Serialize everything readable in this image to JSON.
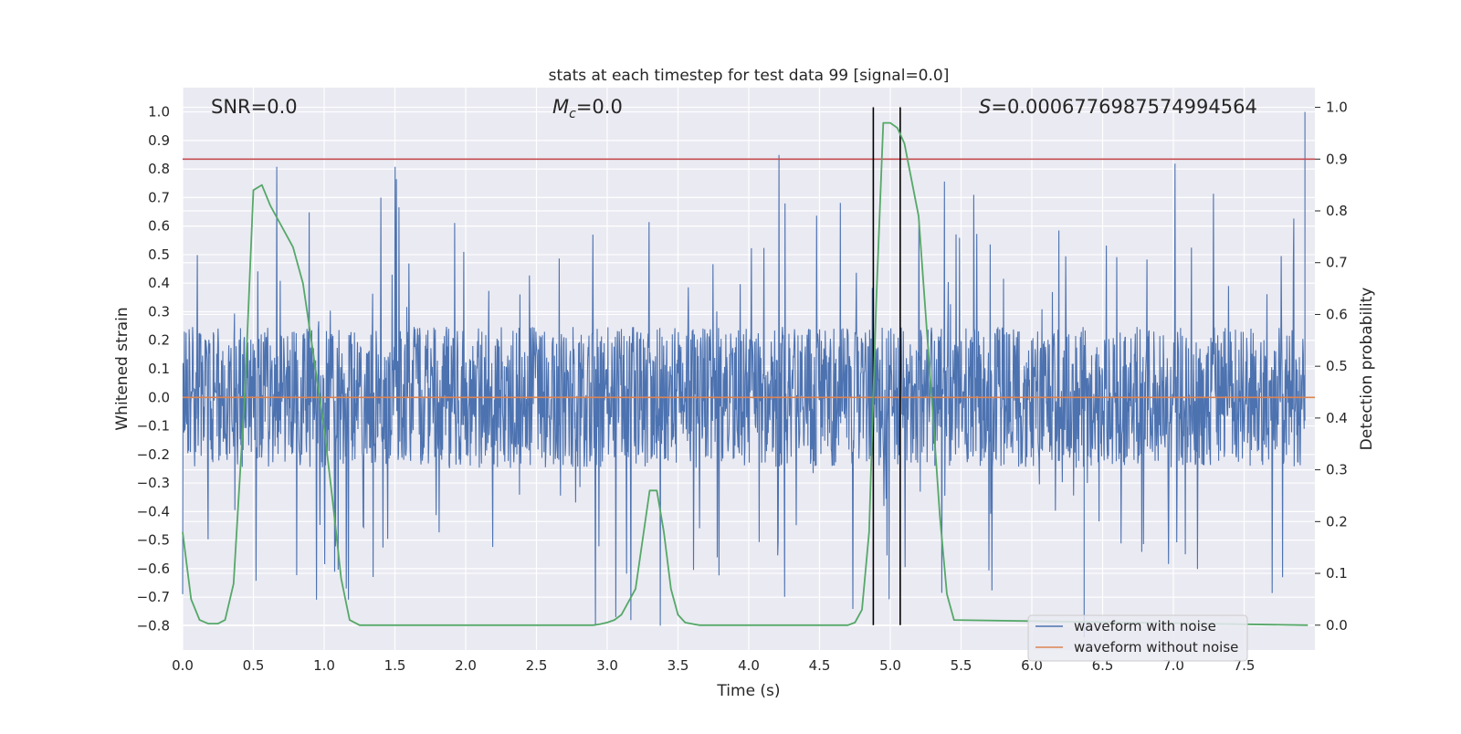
{
  "chart_data": {
    "type": "line",
    "title": "stats at each timestep for test data 99 [signal=0.0]",
    "xlabel": "Time (s)",
    "ylabel": "Whitened strain",
    "ylabel_right": "Detection probability",
    "xlim": [
      0.0,
      8.0
    ],
    "ylim": [
      -0.885,
      1.085
    ],
    "ylim_right": [
      -0.048,
      1.038
    ],
    "x_ticks": [
      0.0,
      0.5,
      1.0,
      1.5,
      2.0,
      2.5,
      3.0,
      3.5,
      4.0,
      4.5,
      5.0,
      5.5,
      6.0,
      6.5,
      7.0,
      7.5
    ],
    "x_tick_labels": [
      "0.0",
      "0.5",
      "1.0",
      "1.5",
      "2.0",
      "2.5",
      "3.0",
      "3.5",
      "4.0",
      "4.5",
      "5.0",
      "5.5",
      "6.0",
      "6.5",
      "7.0",
      "7.5"
    ],
    "y_ticks": [
      1.0,
      0.9,
      0.8,
      0.7,
      0.6,
      0.5,
      0.4,
      0.3,
      0.2,
      0.1,
      0.0,
      -0.1,
      -0.2,
      -0.3,
      -0.4,
      -0.5,
      -0.6,
      -0.7,
      -0.8
    ],
    "y_tick_labels": [
      "1.0",
      "0.9",
      "0.8",
      "0.7",
      "0.6",
      "0.5",
      "0.4",
      "0.3",
      "0.2",
      "0.1",
      "0.0",
      "−0.1",
      "−0.2",
      "−0.3",
      "−0.4",
      "−0.5",
      "−0.6",
      "−0.7",
      "−0.8"
    ],
    "y_right_ticks": [
      1.0,
      0.9,
      0.8,
      0.7,
      0.6,
      0.5,
      0.4,
      0.3,
      0.2,
      0.1,
      0.0
    ],
    "y_right_tick_labels": [
      "1.0",
      "0.9",
      "0.8",
      "0.7",
      "0.6",
      "0.5",
      "0.4",
      "0.3",
      "0.2",
      "0.1",
      "0.0"
    ],
    "grid": true,
    "legend_position": "lower-right",
    "annotations": {
      "snr": "SNR=0.0",
      "mc_symbol": "M",
      "mc_sub": "c",
      "mc_value": "=0.0",
      "s_symbol": "S",
      "s_value": "=0.0006776987574994564"
    },
    "series": [
      {
        "name": "waveform with noise",
        "color": "#4c72b0",
        "axis": "left",
        "noise_amplitude": 0.38,
        "max_peak": {
          "x": 7.93,
          "y": 1.0
        },
        "min_peak": {
          "x": 6.37,
          "y": -0.84
        }
      },
      {
        "name": "waveform without noise",
        "color": "#dd8452",
        "axis": "left",
        "x": [
          0.0,
          8.0
        ],
        "y": [
          0.0,
          0.0
        ]
      },
      {
        "name": "",
        "color": "#55a868",
        "axis": "right",
        "x": [
          0.0,
          0.06,
          0.12,
          0.18,
          0.25,
          0.3,
          0.36,
          0.44,
          0.5,
          0.56,
          0.62,
          0.7,
          0.78,
          0.85,
          0.92,
          1.0,
          1.06,
          1.12,
          1.18,
          1.25,
          1.3,
          2.9,
          2.95,
          3.0,
          3.05,
          3.1,
          3.2,
          3.3,
          3.35,
          3.4,
          3.45,
          3.5,
          3.55,
          3.65,
          4.7,
          4.75,
          4.8,
          4.85,
          4.9,
          4.95,
          5.0,
          5.05,
          5.1,
          5.2,
          5.3,
          5.35,
          5.4,
          5.45,
          7.95
        ],
        "y": [
          0.18,
          0.05,
          0.01,
          0.003,
          0.003,
          0.01,
          0.08,
          0.45,
          0.84,
          0.85,
          0.81,
          0.77,
          0.73,
          0.66,
          0.53,
          0.38,
          0.24,
          0.09,
          0.01,
          0.0,
          0.0,
          0.0,
          0.002,
          0.005,
          0.01,
          0.02,
          0.07,
          0.26,
          0.26,
          0.18,
          0.07,
          0.02,
          0.005,
          0.0,
          0.0,
          0.005,
          0.03,
          0.18,
          0.62,
          0.97,
          0.97,
          0.96,
          0.93,
          0.79,
          0.41,
          0.21,
          0.06,
          0.01,
          0.0
        ]
      }
    ],
    "threshold_line": {
      "y_right": 0.9,
      "color": "#c44e52"
    },
    "vertical_lines": {
      "x": [
        4.88,
        5.07
      ],
      "color": "#000000"
    }
  }
}
